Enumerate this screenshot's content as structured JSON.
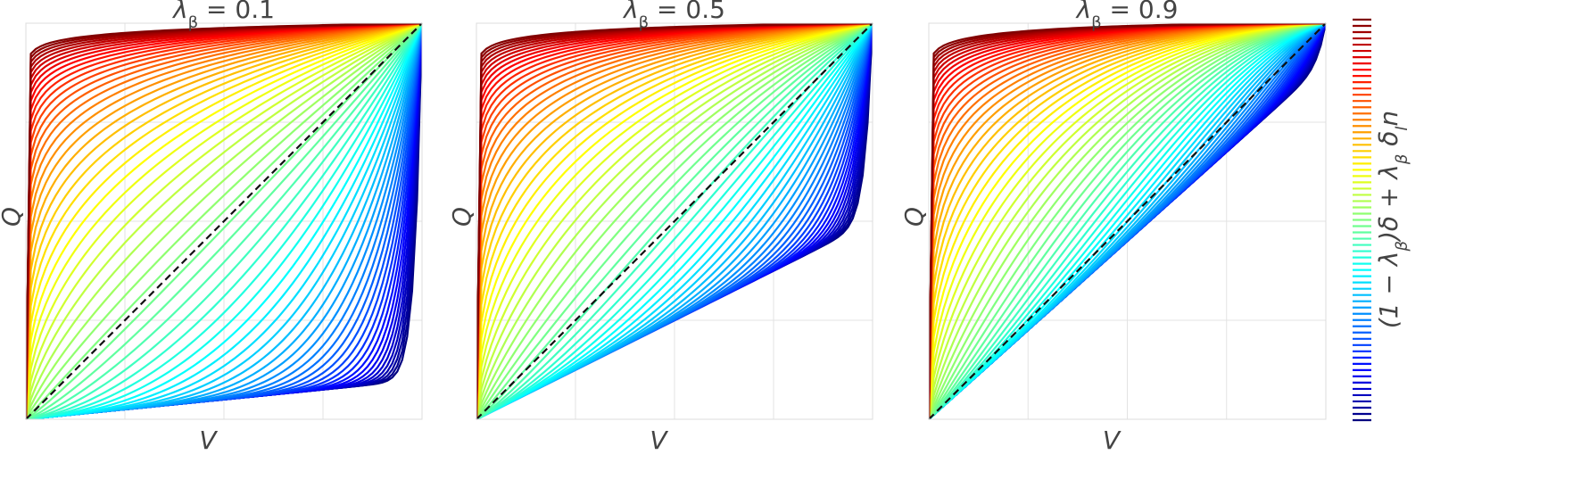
{
  "chart_data": [
    {
      "type": "line",
      "title": "λ_β = 0.1",
      "lambda_beta": 0.1,
      "xlabel": "V",
      "ylabel": "Q",
      "xlim": [
        0,
        1
      ],
      "ylim": [
        0,
        1
      ],
      "grid": true,
      "family": "Q = F_δ(V) for 65 values of δ from blue (low) to dark red (high)",
      "n_curves": 65,
      "reference_line": "y = x (black dashed)"
    },
    {
      "type": "line",
      "title": "λ_β = 0.5",
      "lambda_beta": 0.5,
      "xlabel": "V",
      "ylabel": "Q",
      "xlim": [
        0,
        1
      ],
      "ylim": [
        0,
        1
      ],
      "grid": true,
      "family": "Q = F_δ(V) for 65 values of δ from blue (low) to dark red (high)",
      "n_curves": 65,
      "reference_line": "y = x (black dashed)"
    },
    {
      "type": "line",
      "title": "λ_β = 0.9",
      "lambda_beta": 0.9,
      "xlabel": "V",
      "ylabel": "Q",
      "xlim": [
        0,
        1
      ],
      "ylim": [
        0,
        1
      ],
      "grid": true,
      "family": "Q = F_δ(V) for 65 values of δ from blue (low) to dark red (high)",
      "n_curves": 65,
      "reference_line": "y = x (black dashed)"
    }
  ],
  "colorbar": {
    "label": "(1 − λ_β)δ + λ_β δ_ln",
    "colormap": "jet",
    "n_levels": 65
  }
}
